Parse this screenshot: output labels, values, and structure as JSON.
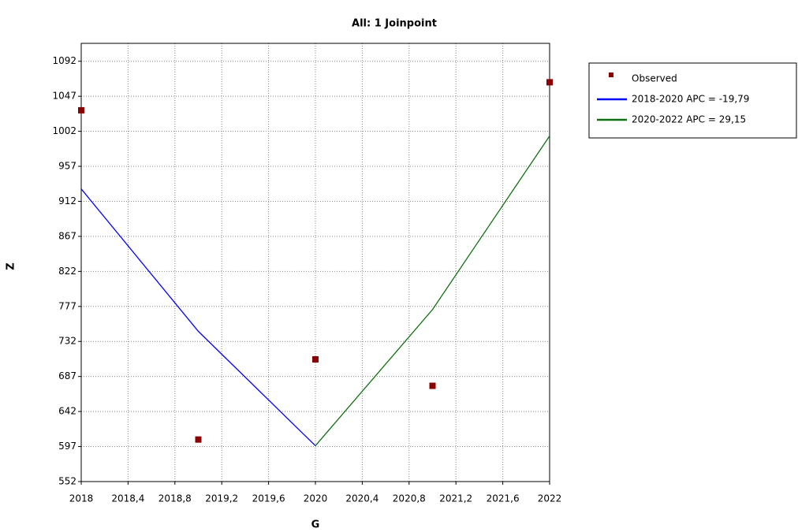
{
  "chart_data": {
    "type": "line",
    "title": "All: 1 Joinpoint",
    "x_label": "G",
    "y_label": "Z",
    "xlim": [
      2018,
      2022
    ],
    "ylim": [
      552,
      1115
    ],
    "xticks": [
      2018,
      {
        "value": 2018.4,
        "label": "2018,4"
      },
      {
        "value": 2018.8,
        "label": "2018,8"
      },
      {
        "value": 2019.2,
        "label": "2019,2"
      },
      {
        "value": 2019.6,
        "label": "2019,6"
      },
      2020,
      {
        "value": 2020.4,
        "label": "2020,4"
      },
      {
        "value": 2020.8,
        "label": "2020,8"
      },
      {
        "value": 2021.2,
        "label": "2021,2"
      },
      {
        "value": 2021.6,
        "label": "2021,6"
      },
      2022
    ],
    "yticks": [
      552,
      597,
      642,
      687,
      732,
      777,
      822,
      867,
      912,
      957,
      1002,
      1047,
      1092
    ],
    "grid": true,
    "series": [
      {
        "name": "Observed",
        "color": "#8b0000",
        "marker": "square",
        "x": [
          2018,
          2019,
          2020,
          2021,
          2022
        ],
        "values": [
          1029,
          606,
          709,
          675,
          1065
        ]
      },
      {
        "name": "2018-2020 APC  = -19,79",
        "color": "#0000ff",
        "x": [
          2018,
          2019,
          2020
        ],
        "values": [
          928,
          745,
          598
        ]
      },
      {
        "name": "2020-2022 APC  =  29,15",
        "color": "#107010",
        "x": [
          2020,
          2021,
          2022
        ],
        "values": [
          598,
          773,
          996
        ]
      }
    ]
  }
}
